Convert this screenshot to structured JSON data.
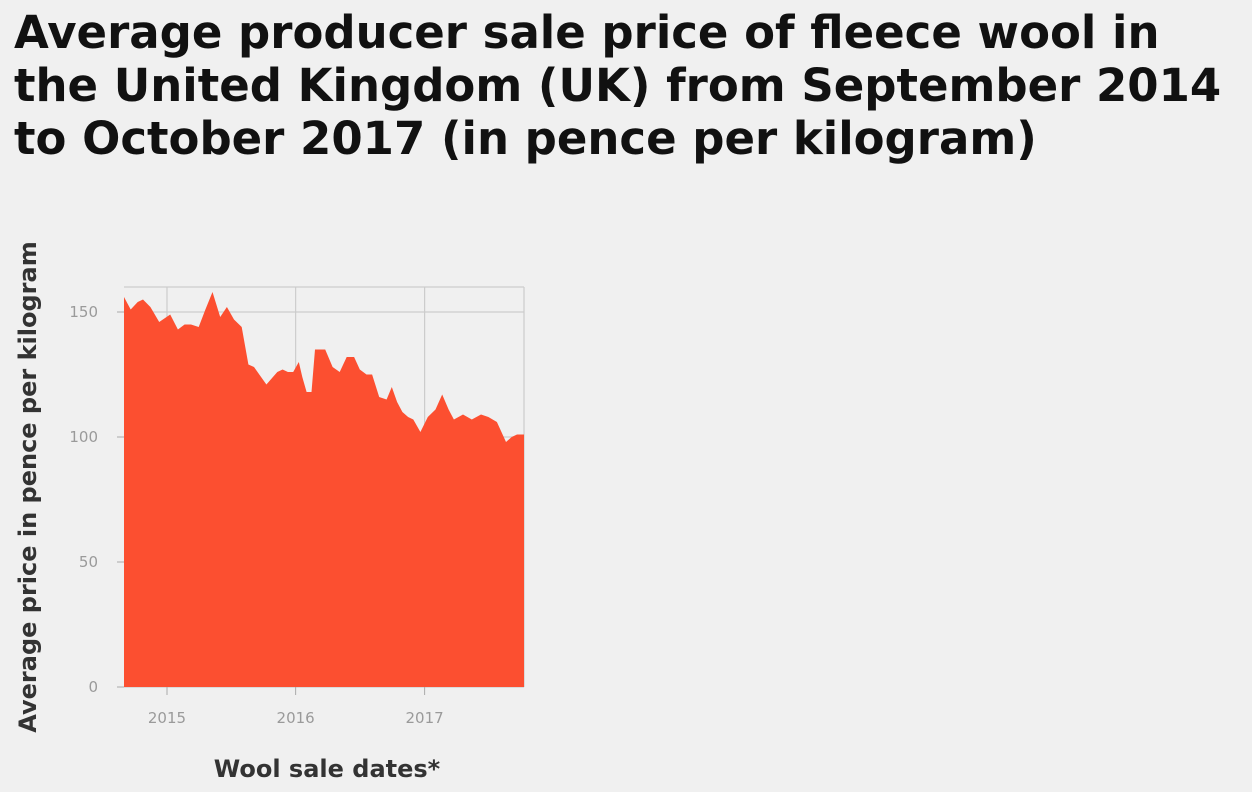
{
  "chart_data": {
    "type": "area",
    "title": "Average producer sale price of fleece wool in the United Kingdom (UK) from September 2014 to October 2017 (in pence per kilogram)",
    "xlabel": "Wool sale dates*",
    "ylabel": "Average price in pence per kilogram",
    "x_tick_labels": [
      "2015",
      "2016",
      "2017"
    ],
    "y_tick_labels": [
      "0",
      "50",
      "100",
      "150"
    ],
    "y_ticks": [
      0,
      50,
      100,
      150
    ],
    "ylim": [
      0,
      160
    ],
    "grid": true,
    "fill_color": "#fc4f30",
    "series": [
      {
        "x": [
          "2014-09-01",
          "2014-09-20",
          "2014-10-10",
          "2014-10-25",
          "2014-11-15",
          "2014-12-10",
          "2015-01-10",
          "2015-02-01",
          "2015-02-20",
          "2015-03-10",
          "2015-04-01",
          "2015-04-20",
          "2015-05-10",
          "2015-06-01",
          "2015-06-20",
          "2015-07-10",
          "2015-08-01",
          "2015-08-20",
          "2015-09-05",
          "2015-09-20",
          "2015-10-10",
          "2015-11-10",
          "2015-11-25",
          "2015-12-10",
          "2015-12-25",
          "2016-01-10",
          "2016-01-20",
          "2016-02-01",
          "2016-02-15",
          "2016-02-25",
          "2016-03-05",
          "2016-03-25",
          "2016-04-15",
          "2016-05-05",
          "2016-05-25",
          "2016-06-15",
          "2016-07-01",
          "2016-07-20",
          "2016-08-05",
          "2016-08-25",
          "2016-09-15",
          "2016-09-30",
          "2016-10-15",
          "2016-10-30",
          "2016-11-15",
          "2016-11-30",
          "2016-12-20",
          "2017-01-10",
          "2017-02-01",
          "2017-02-20",
          "2017-03-10",
          "2017-03-25",
          "2017-04-20",
          "2017-05-15",
          "2017-06-10",
          "2017-07-01",
          "2017-07-25",
          "2017-08-20",
          "2017-09-05",
          "2017-09-20",
          "2017-10-10"
        ],
        "values": [
          156,
          151,
          154,
          155,
          152,
          146,
          149,
          143,
          145,
          145,
          144,
          151,
          158,
          148,
          152,
          147,
          144,
          129,
          128,
          125,
          121,
          126,
          127,
          126,
          126,
          130,
          124,
          118,
          118,
          135,
          135,
          135,
          128,
          126,
          132,
          132,
          127,
          125,
          125,
          116,
          115,
          120,
          114,
          110,
          108,
          107,
          102,
          108,
          111,
          117,
          111,
          107,
          109,
          107,
          109,
          108,
          106,
          98,
          100,
          101,
          101
        ]
      }
    ]
  }
}
